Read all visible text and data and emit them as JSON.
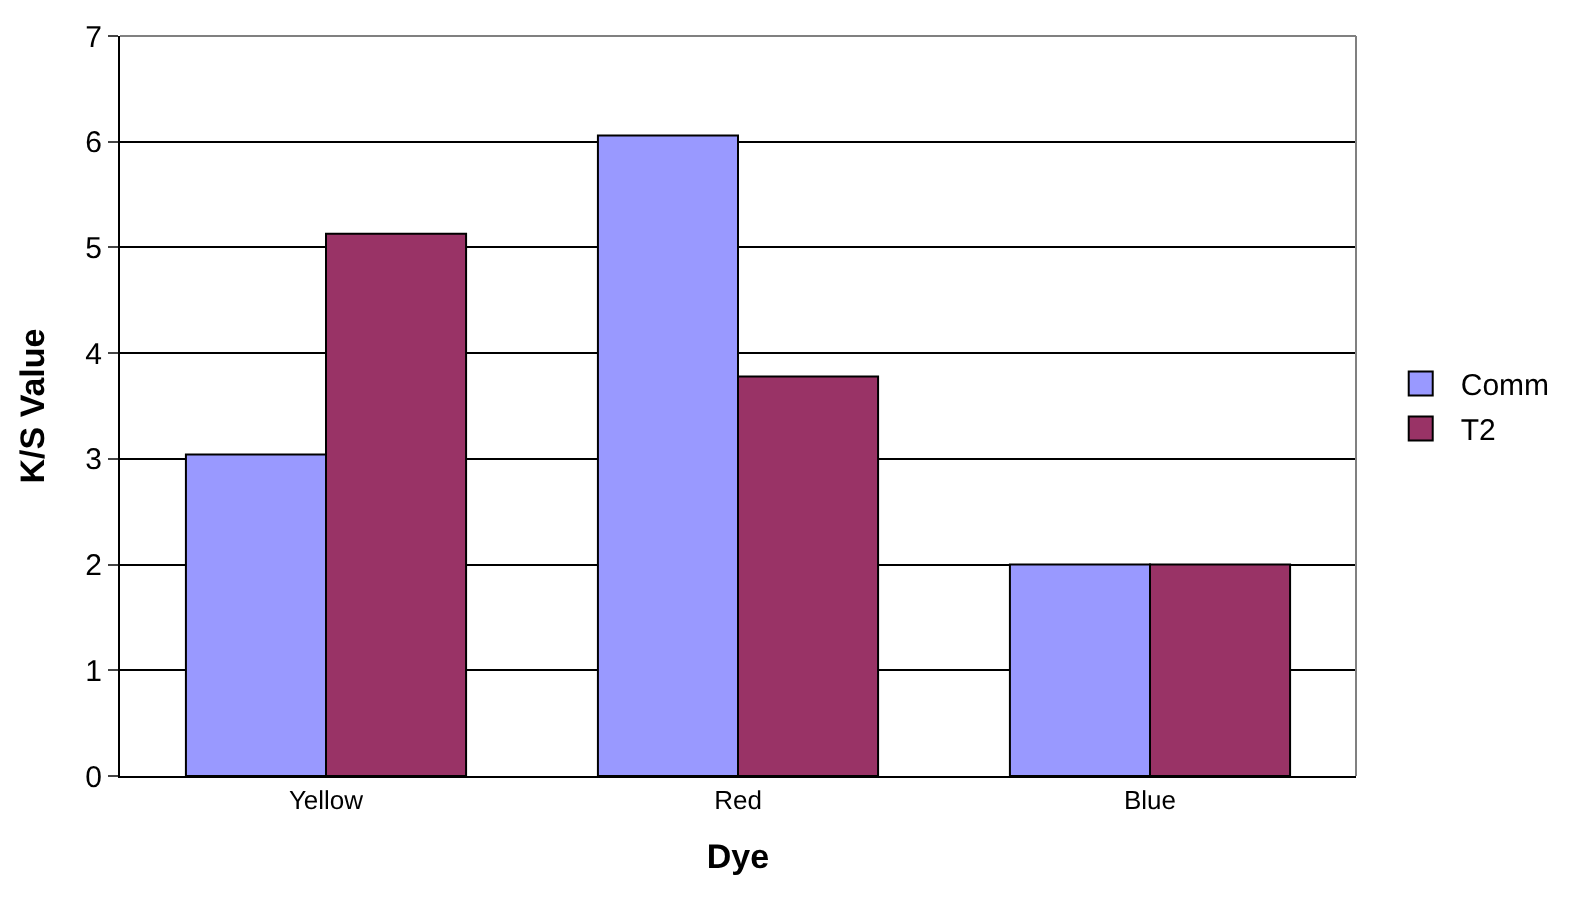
{
  "chart_data": {
    "type": "bar",
    "xlabel": "Dye",
    "ylabel": "K/S Value",
    "categories": [
      "Yellow",
      "Red",
      "Blue"
    ],
    "series": [
      {
        "name": "Comm",
        "color": "#9999ff",
        "values": [
          3.04,
          6.06,
          2.0
        ]
      },
      {
        "name": "T2",
        "color": "#993366",
        "values": [
          5.13,
          3.78,
          2.0
        ]
      }
    ],
    "ylim": [
      0,
      7
    ],
    "yticks": [
      0,
      1,
      2,
      3,
      4,
      5,
      6,
      7
    ],
    "grid": "y",
    "legend": "right"
  }
}
